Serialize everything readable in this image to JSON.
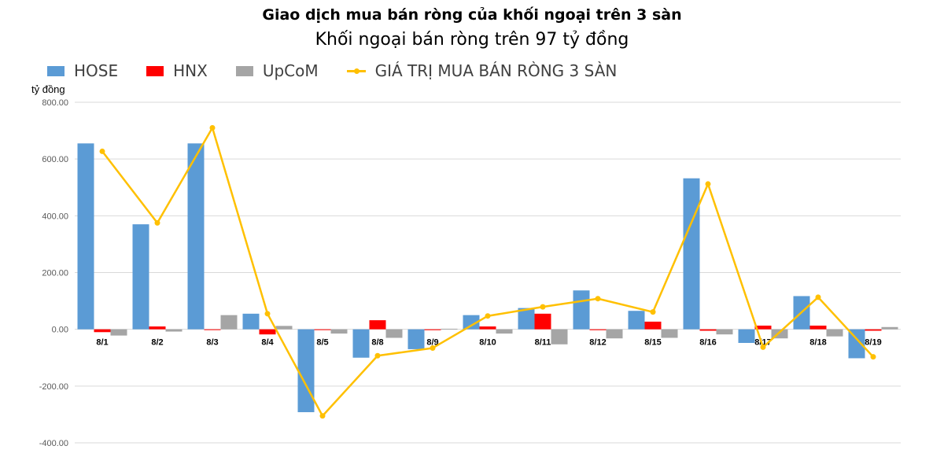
{
  "chart_data": {
    "type": "bar",
    "title": "Giao dịch mua bán ròng của khối ngoại trên 3 sàn",
    "subtitle": "Khối ngoại bán ròng trên 97 tỷ đồng",
    "ylabel": "tỷ đồng",
    "xlabel": "",
    "ylim": [
      -400,
      800
    ],
    "yticks": [
      "800.00",
      "600.00",
      "400.00",
      "200.00",
      "0.00",
      "-200.00",
      "-400.00"
    ],
    "ytick_values": [
      800,
      600,
      400,
      200,
      0,
      -200,
      -400
    ],
    "grid": true,
    "legend_position": "top-left",
    "categories": [
      "8/1",
      "8/2",
      "8/3",
      "8/4",
      "8/5",
      "8/8",
      "8/9",
      "8/10",
      "8/11",
      "8/12",
      "8/15",
      "8/16",
      "8/17",
      "8/18",
      "8/19"
    ],
    "series": [
      {
        "name": "HOSE",
        "type": "bar",
        "color": "#5B9BD5",
        "values": [
          655,
          370,
          655,
          55,
          -292,
          -100,
          -70,
          50,
          75,
          137,
          65,
          532,
          -48,
          117,
          -102
        ]
      },
      {
        "name": "HNX",
        "type": "bar",
        "color": "#FF0000",
        "values": [
          -10,
          10,
          -2,
          -18,
          -2,
          32,
          -3,
          10,
          55,
          -3,
          27,
          -5,
          13,
          13,
          -5
        ]
      },
      {
        "name": "UpCoM",
        "type": "bar",
        "color": "#A5A5A5",
        "values": [
          -22,
          -8,
          50,
          12,
          -15,
          -30,
          2,
          -15,
          -53,
          -32,
          -30,
          -18,
          -32,
          -25,
          8
        ]
      },
      {
        "name": "GIÁ TRỊ MUA BÁN RÒNG 3 SÀN",
        "type": "line",
        "color": "#FFC000",
        "values": [
          627,
          375,
          710,
          55,
          -305,
          -93,
          -66,
          47,
          79,
          108,
          61,
          512,
          -63,
          113,
          -97
        ]
      }
    ]
  }
}
